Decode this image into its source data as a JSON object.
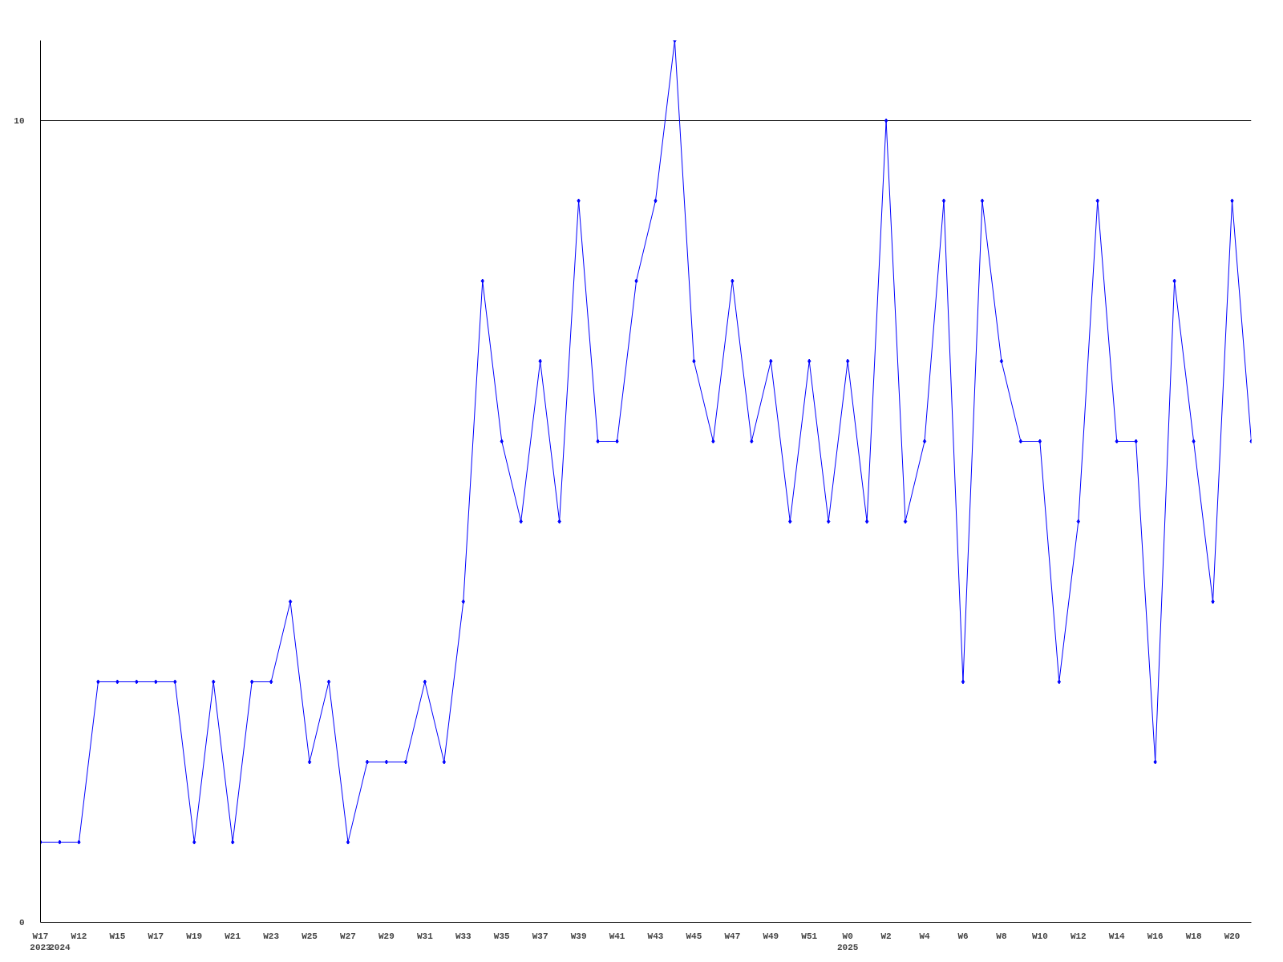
{
  "chart_data": {
    "type": "line",
    "categories": [
      "W17\n2023",
      "\n2024",
      "W12",
      null,
      "W15",
      null,
      "W17",
      null,
      "W19",
      null,
      "W21",
      null,
      "W23",
      null,
      "W25",
      null,
      "W27",
      null,
      "W29",
      null,
      "W31",
      null,
      "W33",
      null,
      "W35",
      null,
      "W37",
      null,
      "W39",
      null,
      "W41",
      null,
      "W43",
      null,
      "W45",
      null,
      "W47",
      null,
      "W49",
      null,
      "W51",
      null,
      "W0\n2025",
      null,
      "W2",
      null,
      "W4",
      null,
      "W6",
      null,
      "W8",
      null,
      "W10",
      null,
      "W12",
      null,
      "W14",
      null,
      "W16",
      null,
      "W18",
      null,
      "W20",
      null
    ],
    "series": [
      {
        "color": "#0000ff",
        "values": [
          1,
          1,
          1,
          3,
          3,
          3,
          3,
          3,
          1,
          3,
          1,
          3,
          3,
          4,
          2,
          3,
          1,
          2,
          2,
          2,
          3,
          2,
          4,
          8,
          6,
          5,
          7,
          5,
          9,
          6,
          6,
          8,
          9,
          11,
          7,
          6,
          8,
          6,
          7,
          5,
          7,
          5,
          7,
          5,
          10,
          5,
          6,
          9,
          3,
          9,
          7,
          6,
          6,
          3,
          5,
          9,
          6,
          6,
          2,
          8,
          6,
          4,
          9,
          6
        ]
      }
    ],
    "ylim": [
      0,
      11
    ],
    "yticks": [
      0,
      10
    ],
    "grid": "y",
    "marker": "diamond",
    "line_style": "solid"
  }
}
